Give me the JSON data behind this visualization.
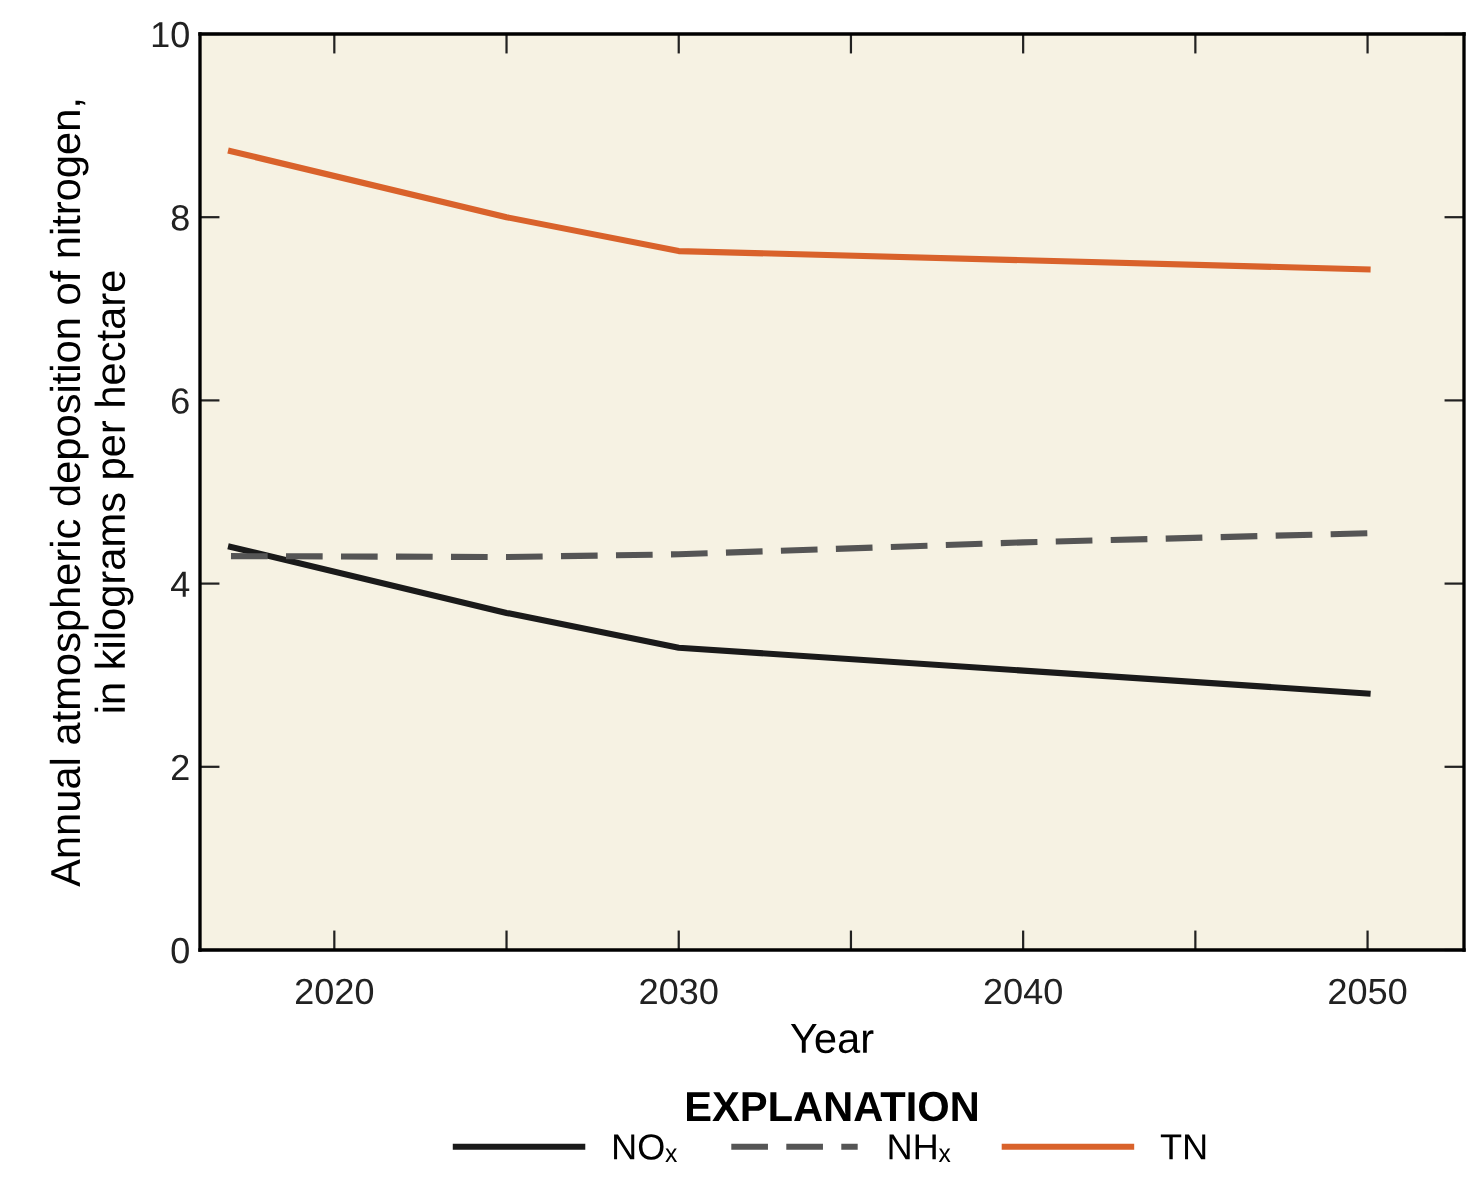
{
  "chart_data": {
    "type": "line",
    "xlabel": "Year",
    "ylabel": "Annual atmospheric deposition of nitrogen,\nin kilograms per hectare",
    "legend_title": "EXPLANATION",
    "legend": "bottom",
    "grid": false,
    "xlim": [
      2016.1,
      2052.8
    ],
    "xticks": [
      2020,
      {
        "value": 2025,
        "label": null
      },
      2030,
      {
        "value": 2035,
        "label": null
      },
      2040,
      {
        "value": 2045,
        "label": null
      },
      2050
    ],
    "ylim": [
      0,
      10
    ],
    "yticks": [
      0,
      2,
      4,
      6,
      8,
      10
    ],
    "series": [
      {
        "name": "NOₓ",
        "color": "#1a1a1a",
        "line_style": "solid",
        "x": [
          2017,
          2025,
          2030,
          2050
        ],
        "values": [
          4.4,
          3.68,
          3.3,
          2.8
        ]
      },
      {
        "name": "NHₓ",
        "color": "#555555",
        "line_style": "dashed",
        "x": [
          2017,
          2025,
          2030,
          2040,
          2050
        ],
        "values": [
          4.3,
          4.29,
          4.32,
          4.45,
          4.55
        ]
      },
      {
        "name": "TN",
        "color": "#d9622b",
        "line_style": "solid",
        "x": [
          2017,
          2025,
          2030,
          2050
        ],
        "values": [
          8.72,
          8.0,
          7.63,
          7.43
        ]
      }
    ]
  }
}
